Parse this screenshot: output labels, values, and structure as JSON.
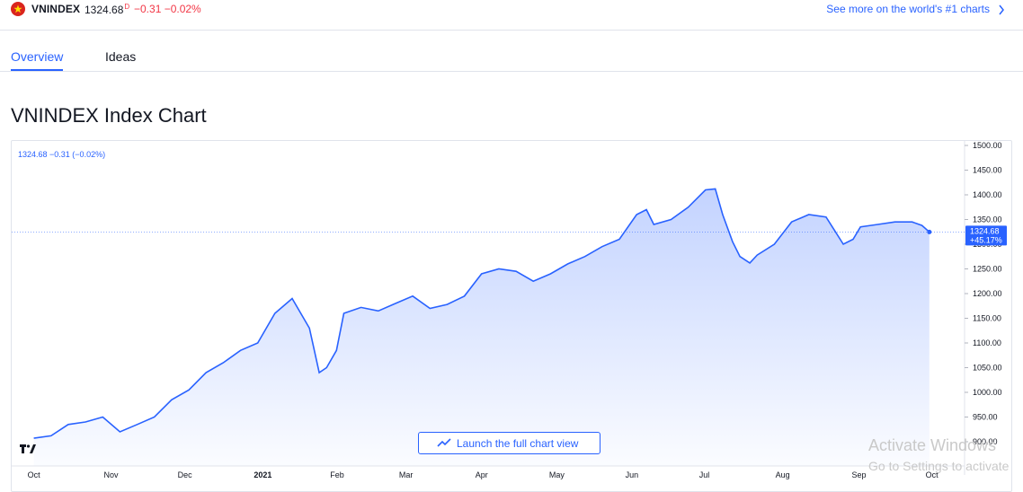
{
  "header": {
    "symbol": "VNINDEX",
    "price": "1324.68",
    "price_sup": "D",
    "change": "−0.31  −0.02%",
    "see_more": "See more on the world's #1 charts"
  },
  "tabs": [
    "Overview",
    "Ideas"
  ],
  "page_title": "VNINDEX Index Chart",
  "legend_text": "1324.68  −0.31 (−0.02%)",
  "launch_label": "Launch the full chart view",
  "last_price_label": "1324.68",
  "last_pct_label": "+45.17%",
  "watermark": [
    "Activate Windows",
    "Go to Settings to activate"
  ],
  "colors": {
    "accent": "#2962ff",
    "negative": "#f23645",
    "line": "#2962ff"
  },
  "chart_data": {
    "type": "area",
    "x_labels": [
      "Oct",
      "Nov",
      "Dec",
      "2021",
      "Feb",
      "Mar",
      "Apr",
      "May",
      "Jun",
      "Jul",
      "Aug",
      "Sep",
      "Oct"
    ],
    "x": [
      "2020-10-01",
      "2020-10-08",
      "2020-10-15",
      "2020-10-22",
      "2020-10-29",
      "2020-11-05",
      "2020-11-12",
      "2020-11-19",
      "2020-11-26",
      "2020-12-03",
      "2020-12-10",
      "2020-12-17",
      "2020-12-24",
      "2020-12-31",
      "2021-01-07",
      "2021-01-14",
      "2021-01-21",
      "2021-01-25",
      "2021-01-28",
      "2021-02-01",
      "2021-02-04",
      "2021-02-11",
      "2021-02-18",
      "2021-02-25",
      "2021-03-04",
      "2021-03-11",
      "2021-03-18",
      "2021-03-25",
      "2021-04-01",
      "2021-04-08",
      "2021-04-15",
      "2021-04-22",
      "2021-04-29",
      "2021-05-06",
      "2021-05-13",
      "2021-05-20",
      "2021-05-27",
      "2021-06-03",
      "2021-06-07",
      "2021-06-10",
      "2021-06-17",
      "2021-06-24",
      "2021-07-01",
      "2021-07-05",
      "2021-07-08",
      "2021-07-12",
      "2021-07-15",
      "2021-07-19",
      "2021-07-22",
      "2021-07-29",
      "2021-08-05",
      "2021-08-12",
      "2021-08-19",
      "2021-08-26",
      "2021-08-30",
      "2021-09-02",
      "2021-09-09",
      "2021-09-16",
      "2021-09-23",
      "2021-09-27",
      "2021-09-30"
    ],
    "values": [
      907,
      912,
      935,
      940,
      950,
      920,
      935,
      950,
      985,
      1005,
      1040,
      1060,
      1085,
      1100,
      1160,
      1190,
      1130,
      1040,
      1050,
      1085,
      1160,
      1172,
      1165,
      1180,
      1195,
      1170,
      1178,
      1195,
      1240,
      1250,
      1245,
      1225,
      1240,
      1260,
      1275,
      1295,
      1310,
      1360,
      1370,
      1340,
      1350,
      1375,
      1410,
      1412,
      1360,
      1305,
      1275,
      1262,
      1278,
      1300,
      1345,
      1360,
      1355,
      1300,
      1310,
      1335,
      1340,
      1345,
      1345,
      1338,
      1324.68
    ],
    "yticks": [
      900,
      950,
      1000,
      1050,
      1100,
      1150,
      1200,
      1250,
      1300,
      1350,
      1400,
      1450,
      1500
    ],
    "ylim": [
      890,
      1505
    ],
    "last_value": 1324.68,
    "last_change_pct": "+45.17%",
    "title": "VNINDEX Index Chart",
    "xlabel": "",
    "ylabel": ""
  }
}
